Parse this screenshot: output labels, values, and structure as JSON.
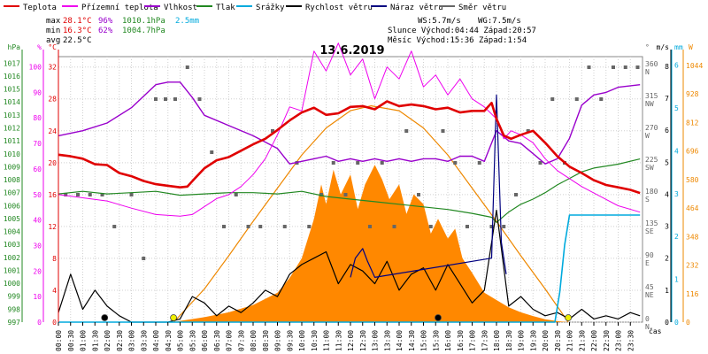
{
  "chart_data": {
    "type": "line",
    "title": "13.6.2019",
    "x_axis_label": "čas",
    "legend_position": "top",
    "grid": true,
    "legend": [
      {
        "name": "Teplota",
        "color": "#e00000"
      },
      {
        "name": "Přízemní teplota",
        "color": "#ee00ee"
      },
      {
        "name": "Vlhkost",
        "color": "#9900cc"
      },
      {
        "name": "Tlak",
        "color": "#228822"
      },
      {
        "name": "Srážky",
        "color": "#00aadd"
      },
      {
        "name": "Rychlost větru",
        "color": "#000000"
      },
      {
        "name": "Náraz větru",
        "color": "#000080"
      },
      {
        "name": "Směr větru",
        "color": "#666666"
      }
    ],
    "stats": {
      "max_label": "max",
      "min_label": "min",
      "avg_label": "avg",
      "temp_max": "28.1°C",
      "temp_min": "16.3°C",
      "temp_avg": "22.5°C",
      "hum_max": "96%",
      "hum_min": "62%",
      "press_max": "1010.1hPa",
      "press_min": "1004.7hPa",
      "rain": "2.5mm",
      "ws": "WS:5.7m/s",
      "wg": "WG:7.5m/s",
      "sun": "Slunce Východ:04:44  Západ:20:57",
      "moon": "Měsíc  Východ:15:36  Západ:1:54"
    },
    "axes": {
      "hpa": {
        "label": "hPa",
        "ticks": [
          "997",
          "998",
          "999",
          "1000",
          "1001",
          "1002",
          "1003",
          "1004",
          "1005",
          "1006",
          "1007",
          "1008",
          "1009",
          "1010",
          "1011",
          "1012",
          "1013",
          "1014",
          "1015",
          "1016",
          "1017"
        ]
      },
      "pct": {
        "label": "%",
        "ticks": [
          "0",
          "10",
          "20",
          "30",
          "40",
          "50",
          "60",
          "70",
          "80",
          "90",
          "100"
        ]
      },
      "temp": {
        "label": "°C",
        "ticks": [
          "0",
          "4",
          "8",
          "12",
          "16",
          "20",
          "24",
          "28",
          "32"
        ]
      },
      "dir": {
        "label": "°",
        "ticks": [
          "0 N",
          "45 NE",
          "90 E",
          "135 SE",
          "180 S",
          "225 SW",
          "270 W",
          "315 NW",
          "360 N"
        ]
      },
      "ms": {
        "label": "m/s",
        "ticks": [
          "0",
          "1",
          "2",
          "3",
          "4",
          "5",
          "6",
          "7",
          "8"
        ]
      },
      "mm": {
        "label": "mm",
        "ticks": [
          "0",
          "1",
          "2",
          "3",
          "4",
          "5",
          "6"
        ]
      },
      "wm2": {
        "label": "W",
        "ticks": [
          "0",
          "116",
          "232",
          "348",
          "464",
          "580",
          "696",
          "812",
          "928",
          "1044"
        ]
      }
    },
    "x_ticks": [
      "00:00",
      "00:30",
      "01:00",
      "01:30",
      "02:00",
      "02:30",
      "03:00",
      "03:30",
      "04:00",
      "04:30",
      "05:00",
      "05:30",
      "06:00",
      "06:30",
      "07:00",
      "07:30",
      "08:00",
      "08:30",
      "09:00",
      "09:30",
      "10:00",
      "10:30",
      "11:00",
      "11:30",
      "12:00",
      "12:30",
      "13:00",
      "13:30",
      "14:00",
      "14:30",
      "15:00",
      "15:30",
      "16:00",
      "16:30",
      "17:00",
      "17:30",
      "18:00",
      "18:30",
      "19:00",
      "19:30",
      "20:00",
      "20:30",
      "21:00",
      "21:30",
      "22:00",
      "22:30",
      "23:00",
      "23:30"
    ],
    "series": {
      "teplota": {
        "unit": "°C",
        "x": [
          0,
          0.5,
          1,
          1.5,
          2,
          2.5,
          3,
          3.5,
          4,
          4.5,
          5,
          5.3,
          5.6,
          6,
          6.5,
          7,
          7.5,
          8,
          8.5,
          9,
          9.5,
          10,
          10.5,
          11,
          11.5,
          12,
          12.5,
          13,
          13.5,
          14,
          14.5,
          15,
          15.5,
          16,
          16.5,
          17,
          17.5,
          17.8,
          18,
          18.3,
          18.6,
          19,
          19.5,
          20,
          20.5,
          21,
          21.5,
          22,
          22.5,
          23,
          23.5,
          23.9
        ],
        "y": [
          21,
          20.8,
          20.5,
          19.8,
          19.7,
          18.7,
          18.3,
          17.7,
          17.3,
          17.1,
          16.9,
          17.0,
          18.0,
          19.3,
          20.3,
          20.7,
          21.5,
          22.3,
          23.0,
          24.1,
          25.3,
          26.3,
          26.9,
          26.0,
          26.2,
          27.0,
          27.1,
          26.7,
          27.7,
          27.1,
          27.3,
          27.1,
          26.7,
          26.9,
          26.3,
          26.5,
          26.5,
          27.5,
          25.5,
          23.4,
          23.0,
          23.5,
          24.0,
          22.5,
          20.8,
          19.5,
          18.7,
          17.8,
          17.2,
          16.9,
          16.6,
          16.2
        ]
      },
      "prizemni_teplota": {
        "unit": "°C",
        "x": [
          0,
          1,
          2,
          3,
          4,
          5,
          5.5,
          6,
          6.5,
          7,
          7.5,
          8,
          8.5,
          9,
          9.5,
          10,
          10.5,
          11,
          11.5,
          12,
          12.5,
          13,
          13.5,
          14,
          14.5,
          15,
          15.5,
          16,
          16.5,
          17,
          17.5,
          18,
          18.3,
          18.6,
          19,
          19.5,
          20,
          20.5,
          21,
          21.5,
          22,
          22.5,
          23,
          23.9
        ],
        "y": [
          16,
          15.6,
          15.2,
          14.3,
          13.5,
          13.3,
          13.5,
          14.5,
          15.5,
          16.0,
          17.0,
          18.5,
          20.5,
          23.5,
          27.0,
          26.5,
          34.0,
          31.5,
          35.0,
          31.0,
          33.0,
          28.0,
          32.0,
          30.5,
          34.0,
          29.5,
          31.0,
          28.5,
          30.5,
          28.0,
          27.0,
          25.5,
          23.0,
          24.0,
          23.5,
          22.5,
          20.5,
          19.0,
          18.0,
          17.0,
          16.2,
          15.4,
          14.6,
          13.8
        ]
      },
      "vlhkost": {
        "unit": "%",
        "x": [
          0,
          1,
          2,
          3,
          4,
          4.5,
          5,
          5.5,
          6,
          7,
          8,
          9,
          9.5,
          10,
          10.5,
          11,
          11.5,
          12,
          12.5,
          13,
          13.5,
          14,
          14.5,
          15,
          15.5,
          16,
          16.5,
          17,
          17.5,
          18,
          18.5,
          19,
          19.5,
          20,
          20.5,
          21,
          21.5,
          22,
          22.5,
          23,
          23.9
        ],
        "y": [
          73,
          75,
          78,
          84,
          93,
          94,
          94,
          88,
          81,
          77,
          73,
          68,
          62,
          63,
          64,
          65,
          63,
          64,
          63,
          64,
          63,
          64,
          63,
          64,
          64,
          63,
          65,
          65,
          63,
          75,
          71,
          70,
          66,
          62,
          64,
          72,
          85,
          89,
          90,
          92,
          93
        ]
      },
      "tlak": {
        "unit": "hPa",
        "x": [
          0,
          1,
          2,
          3,
          4,
          5,
          6,
          7,
          8,
          9,
          10,
          11,
          12,
          13,
          14,
          15,
          16,
          17,
          17.8,
          18,
          18.5,
          19,
          19.5,
          20,
          20.5,
          21,
          21.5,
          22,
          23,
          23.9
        ],
        "y": [
          1006.9,
          1007.1,
          1006.9,
          1007.0,
          1007.1,
          1006.8,
          1006.9,
          1007.0,
          1007.0,
          1006.9,
          1007.1,
          1006.7,
          1006.5,
          1006.3,
          1006.1,
          1005.9,
          1005.7,
          1005.4,
          1005.1,
          1004.7,
          1005.5,
          1006.1,
          1006.5,
          1007.0,
          1007.6,
          1008.1,
          1008.6,
          1008.9,
          1009.2,
          1009.6
        ]
      },
      "srazky": {
        "unit": "mm",
        "x": [
          0,
          20.4,
          20.6,
          20.8,
          21.0,
          21.3,
          23.9
        ],
        "y": [
          0,
          0,
          0.7,
          1.8,
          2.5,
          2.5,
          2.5
        ]
      },
      "rychlost_vetru": {
        "unit": "m/s",
        "x": [
          0,
          0.5,
          1,
          1.5,
          2,
          2.5,
          3,
          3.5,
          4,
          4.5,
          5,
          5.5,
          6,
          6.5,
          7,
          7.5,
          8,
          8.5,
          9,
          9.5,
          10,
          10.5,
          11,
          11.5,
          12,
          12.5,
          13,
          13.5,
          14,
          14.5,
          15,
          15.5,
          16,
          16.5,
          17,
          17.5,
          18,
          18.5,
          19,
          19.5,
          20,
          20.5,
          21,
          21.5,
          22,
          22.5,
          23,
          23.5,
          23.9
        ],
        "y": [
          0.3,
          1.5,
          0.4,
          1.0,
          0.5,
          0.2,
          0,
          0,
          0,
          0,
          0.1,
          0.8,
          0.6,
          0.2,
          0.5,
          0.3,
          0.6,
          1.0,
          0.8,
          1.5,
          1.8,
          2.0,
          2.2,
          1.2,
          1.8,
          1.6,
          1.2,
          1.9,
          1.0,
          1.5,
          1.7,
          1.0,
          1.8,
          1.2,
          0.6,
          1.0,
          3.5,
          0.5,
          0.8,
          0.4,
          0.2,
          0.3,
          0.1,
          0.4,
          0.1,
          0.2,
          0.1,
          0.3,
          0.2
        ]
      },
      "naraz_vetru": {
        "unit": "m/s",
        "x": [
          12,
          12.2,
          12.5,
          12.7,
          13,
          17.8,
          18.0,
          18.2,
          18.4
        ],
        "y": [
          1.4,
          2.0,
          2.3,
          1.9,
          1.4,
          2.0,
          7.1,
          2.5,
          1.5
        ]
      },
      "smer_vetru": {
        "unit": "°",
        "x": [
          0.3,
          0.8,
          1.3,
          1.8,
          2.3,
          3.0,
          3.5,
          4.0,
          4.4,
          4.8,
          5.3,
          5.8,
          6.3,
          6.8,
          7.3,
          7.8,
          8.3,
          8.8,
          9.3,
          9.8,
          10.3,
          10.8,
          11.3,
          11.8,
          12.3,
          12.8,
          13.3,
          13.8,
          14.3,
          14.8,
          15.3,
          15.8,
          16.3,
          16.8,
          17.3,
          17.8,
          18.3,
          18.8,
          19.3,
          19.8,
          20.3,
          20.8,
          21.3,
          21.8,
          22.3,
          22.8,
          23.3,
          23.8
        ],
        "y": [
          180,
          180,
          180,
          180,
          135,
          180,
          90,
          315,
          315,
          315,
          360,
          315,
          240,
          135,
          180,
          135,
          135,
          270,
          135,
          225,
          135,
          180,
          225,
          180,
          225,
          135,
          225,
          135,
          270,
          180,
          135,
          270,
          225,
          135,
          225,
          135,
          135,
          180,
          270,
          225,
          315,
          225,
          315,
          360,
          315,
          360,
          360,
          360
        ]
      },
      "slunecni_zareni": {
        "unit": "W",
        "x": [
          4.7,
          5,
          6,
          7,
          8,
          9,
          9.5,
          10,
          10.5,
          10.8,
          11,
          11.3,
          11.6,
          12,
          12.3,
          12.6,
          13,
          13.3,
          13.6,
          14,
          14.3,
          14.6,
          15,
          15.3,
          15.6,
          16,
          16.3,
          16.6,
          17,
          17.5,
          18,
          18.5,
          19,
          19.5,
          20,
          20.5,
          20.95
        ],
        "y": [
          0,
          5,
          20,
          40,
          70,
          120,
          180,
          260,
          420,
          560,
          480,
          620,
          520,
          600,
          460,
          560,
          640,
          580,
          500,
          560,
          440,
          520,
          480,
          360,
          420,
          340,
          380,
          260,
          200,
          120,
          90,
          60,
          40,
          25,
          12,
          4,
          0
        ]
      },
      "teoreticke_zareni": {
        "unit": "W",
        "x": [
          4.74,
          6,
          7,
          8,
          9,
          10,
          11,
          12,
          12.85,
          14,
          15,
          16,
          17,
          18,
          19,
          20,
          20.95
        ],
        "y": [
          0,
          135,
          270,
          410,
          545,
          680,
          790,
          860,
          880,
          860,
          790,
          680,
          545,
          410,
          270,
          135,
          0
        ]
      }
    },
    "markers": [
      {
        "type": "moonset",
        "time": "01:54",
        "x": 1.9,
        "color": "#000000"
      },
      {
        "type": "sunrise",
        "time": "04:44",
        "x": 4.73,
        "color": "#eeee00"
      },
      {
        "type": "moonrise",
        "time": "15:36",
        "x": 15.6,
        "color": "#000000"
      },
      {
        "type": "sunset",
        "time": "20:57",
        "x": 20.95,
        "color": "#eeee00"
      }
    ]
  }
}
